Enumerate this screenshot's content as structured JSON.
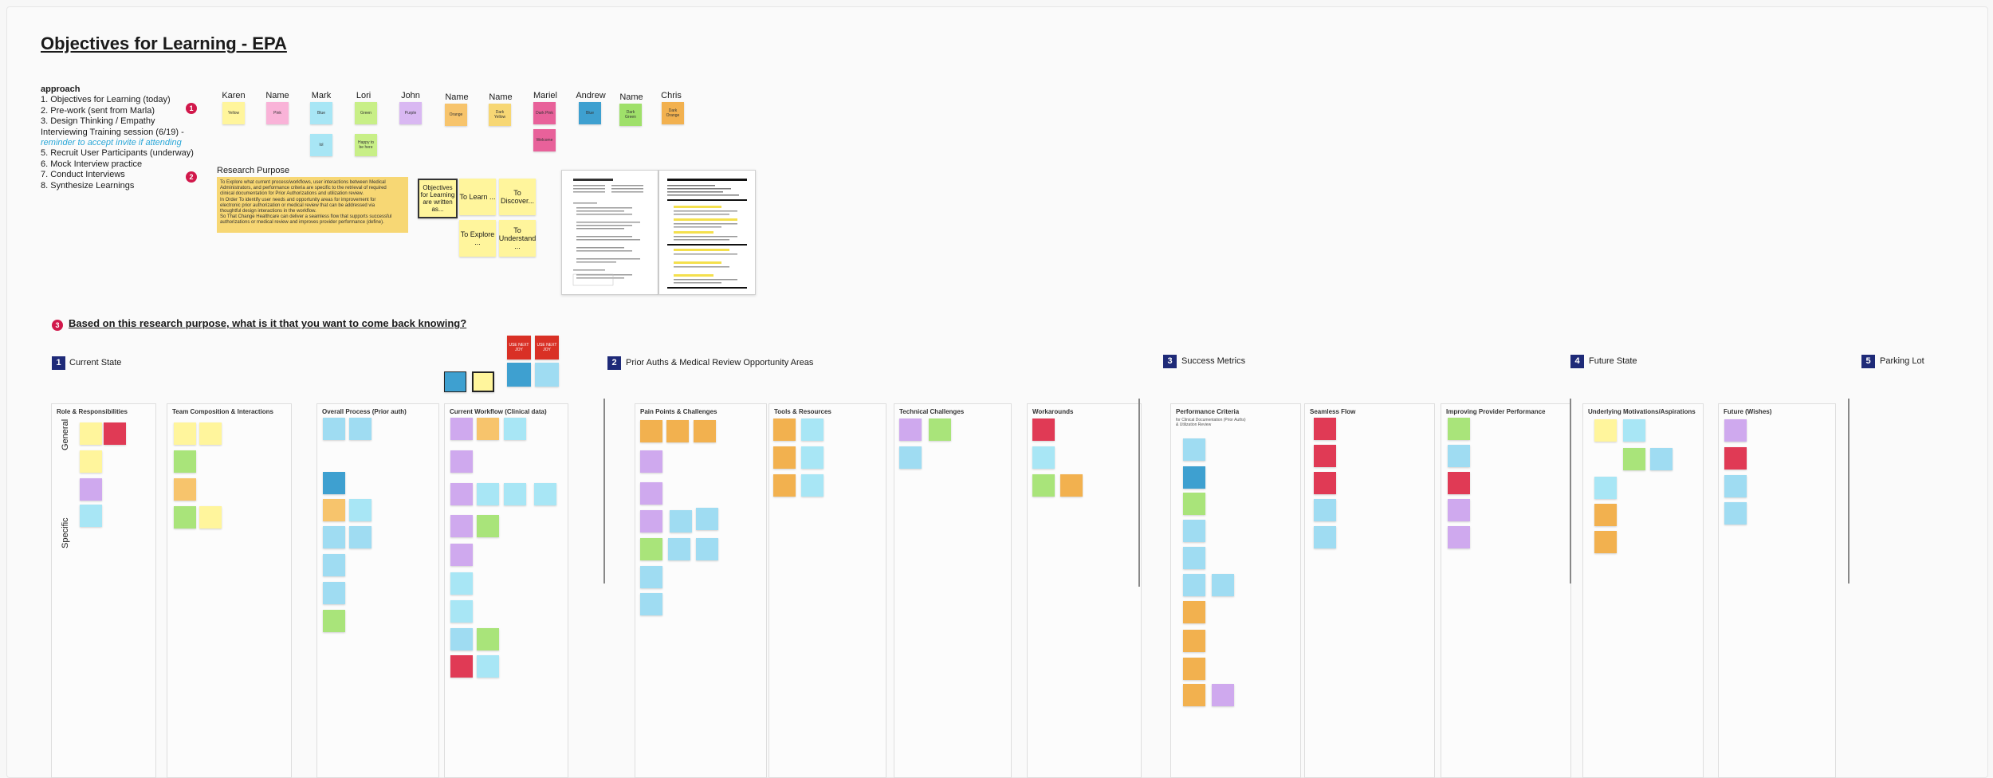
{
  "board": {
    "title": "Objectives for Learning -  EPA",
    "approach": {
      "heading": "approach",
      "items": [
        "1. Objectives for Learning (today)",
        "2. Pre-work (sent from Marla)",
        "3. Design Thinking / Empathy",
        "Interviewing Training session (6/19) -",
        "reminder to accept invite if attending",
        "5. Recruit User Participants (underway)",
        "6. Mock Interview practice",
        "7. Conduct Interviews",
        "8. Synthesize Learnings"
      ]
    },
    "steps": {
      "one": "1",
      "two": "2",
      "three": "3"
    },
    "people": [
      {
        "name": "Karen",
        "sticky": "Yellow"
      },
      {
        "name": "Name",
        "sticky": "Pink"
      },
      {
        "name": "Mark",
        "sticky": "Blue",
        "extra": "lol"
      },
      {
        "name": "Lori",
        "sticky": "Green",
        "extra": "Happy to be here"
      },
      {
        "name": "John",
        "sticky": "Purple"
      },
      {
        "name": "Name",
        "sticky": "Orange"
      },
      {
        "name": "Name",
        "sticky": "Dark Yellow"
      },
      {
        "name": "Mariel",
        "sticky": "Dark Pink",
        "extra": "Welcome"
      },
      {
        "name": "Andrew",
        "sticky": "Blue"
      },
      {
        "name": "Name",
        "sticky": "Dark Green"
      },
      {
        "name": "Chris",
        "sticky": "Dark Orange"
      }
    ],
    "research": {
      "label": "Research Purpose",
      "note_lines": [
        "To Explore what current process/workflows, user interactions between Medical",
        "Administrators, and performance criteria are specific to the retrieval of required",
        "clinical documentation for Prior Authorizations and utilization review.",
        "In Order To identify user needs and opportunity areas for improvement for",
        "electronic prior authorization or medical review that can be addressed via",
        "thoughtful design interactions in the workflow.",
        "So That Change Healthcare can deliver a seamless flow that supports successful",
        "authorizations or medical review and improves provider performance (define)."
      ],
      "objective": "Objectives for Learning are written as...",
      "stickies": [
        "To Learn ...",
        "To Discover...",
        "To Explore ...",
        "To Understand ..."
      ]
    },
    "question": "Based on this research purpose, what is it that you want to come back knowing?",
    "sections": [
      {
        "num": "1",
        "label": "Current State"
      },
      {
        "num": "2",
        "label": "Prior Auths & Medical Review Opportunity Areas"
      },
      {
        "num": "3",
        "label": "Success Metrics"
      },
      {
        "num": "4",
        "label": "Future State"
      },
      {
        "num": "5",
        "label": "Parking Lot"
      }
    ],
    "frames": [
      "Role & Responsibilities",
      "Team Composition & Interactions",
      "Overall Process (Prior auth)",
      "Current Workflow (Clinical data)",
      "Pain Points & Challenges",
      "Tools & Resources",
      "Technical Challenges",
      "Workarounds",
      "Performance Criteria",
      "Seamless Flow",
      "Improving Provider Performance",
      "Underlying Motivations/Aspirations",
      "Future (Wishes)"
    ],
    "side_labels": {
      "general": "General",
      "specific": "Specific"
    },
    "perf_sub": "for Clinical Documentation (Prior Auths) & Utilization Review",
    "red_stickies": [
      "USE NEXT JOY",
      "USE NEXT JOY"
    ]
  }
}
